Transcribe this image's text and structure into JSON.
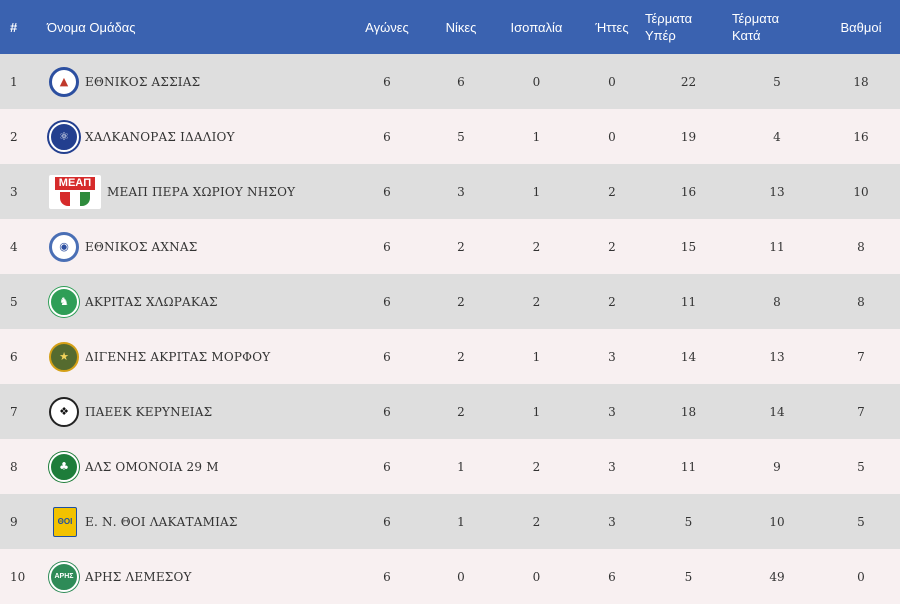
{
  "header": {
    "rank": "#",
    "team": "Όνομα Ομάδας",
    "played": "Αγώνες",
    "wins": "Νίκες",
    "draws": "Ισοπαλία",
    "losses": "Ήττες",
    "goals_for_1": "Τέρματα",
    "goals_for_2": "Υπέρ",
    "goals_against_1": "Τέρματα",
    "goals_against_2": "Κατά",
    "points": "Βαθμοί"
  },
  "colors": {
    "header_bg": "#3a62b0",
    "row_odd": "#dedede",
    "row_even": "#f8f0f1"
  },
  "rows": [
    {
      "rank": "1",
      "team": "ΕΘΝΙΚΟΣ ΑΣΣΙΑΣ",
      "logo": "ethnikos-assias-crest",
      "played": "6",
      "wins": "6",
      "draws": "0",
      "losses": "0",
      "gf": "22",
      "ga": "5",
      "points": "18"
    },
    {
      "rank": "2",
      "team": "ΧΑΛΚΑΝΟΡΑΣ ΙΔΑΛΙΟΥ",
      "logo": "chalkanoras-crest",
      "played": "6",
      "wins": "5",
      "draws": "1",
      "losses": "0",
      "gf": "19",
      "ga": "4",
      "points": "16"
    },
    {
      "rank": "3",
      "team": "ΜΕΑΠ ΠΕΡΑ ΧΩΡΙΟΥ ΝΗΣΟΥ",
      "logo": "meap-crest",
      "logo_text": "ΜΕΑΠ",
      "played": "6",
      "wins": "3",
      "draws": "1",
      "losses": "2",
      "gf": "16",
      "ga": "13",
      "points": "10"
    },
    {
      "rank": "4",
      "team": "ΕΘΝΙΚΟΣ ΑΧΝΑΣ",
      "logo": "ethnikos-achnas-crest",
      "played": "6",
      "wins": "2",
      "draws": "2",
      "losses": "2",
      "gf": "15",
      "ga": "11",
      "points": "8"
    },
    {
      "rank": "5",
      "team": "ΑΚΡΙΤΑΣ ΧΛΩΡΑΚΑΣ",
      "logo": "akritas-chlorakas-crest",
      "played": "6",
      "wins": "2",
      "draws": "2",
      "losses": "2",
      "gf": "11",
      "ga": "8",
      "points": "8"
    },
    {
      "rank": "6",
      "team": "ΔΙΓΕΝΗΣ ΑΚΡΙΤΑΣ ΜΟΡΦΟΥ",
      "logo": "digenis-morfou-crest",
      "played": "6",
      "wins": "2",
      "draws": "1",
      "losses": "3",
      "gf": "14",
      "ga": "13",
      "points": "7"
    },
    {
      "rank": "7",
      "team": "ΠΑΕΕΚ ΚΕΡΥΝΕΙΑΣ",
      "logo": "paeek-eagle-crest",
      "played": "6",
      "wins": "2",
      "draws": "1",
      "losses": "3",
      "gf": "18",
      "ga": "14",
      "points": "7"
    },
    {
      "rank": "8",
      "team": "ΑΛΣ ΟΜΟΝΟΙΑ 29 Μ",
      "logo": "omonoia-clover-crest",
      "played": "6",
      "wins": "1",
      "draws": "2",
      "losses": "3",
      "gf": "11",
      "ga": "9",
      "points": "5"
    },
    {
      "rank": "9",
      "team": "Ε. Ν. ΘΟΙ ΛΑΚΑΤΑΜΙΑΣ",
      "logo": "thoi-lakatamias-crest",
      "logo_text": "ΘΟΙ",
      "played": "6",
      "wins": "1",
      "draws": "2",
      "losses": "3",
      "gf": "5",
      "ga": "10",
      "points": "5"
    },
    {
      "rank": "10",
      "team": "ΑΡΗΣ ΛΕΜΕΣΟΥ",
      "logo": "aris-limassol-crest",
      "logo_text": "ΑΡΗΣ",
      "played": "6",
      "wins": "0",
      "draws": "0",
      "losses": "6",
      "gf": "5",
      "ga": "49",
      "points": "0"
    }
  ]
}
